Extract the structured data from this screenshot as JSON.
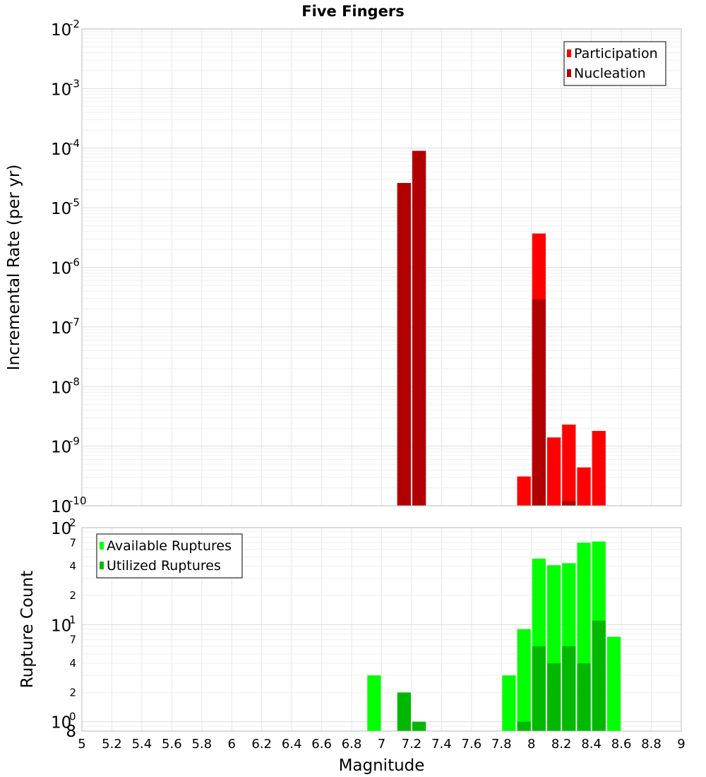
{
  "chart_data": [
    {
      "type": "bar",
      "title": "Five Fingers",
      "xlabel": "",
      "ylabel": "Incremental Rate (per yr)",
      "y_scale": "log",
      "xlim": [
        5,
        9
      ],
      "ylim": [
        1e-10,
        0.01
      ],
      "y_tick_exponents": [
        "-10",
        "-9",
        "-8",
        "-7",
        "-6",
        "-5",
        "-4",
        "-3",
        "-2"
      ],
      "grid": true,
      "legend_position": "top-right",
      "bar_width": 0.1,
      "series": [
        {
          "name": "Participation",
          "color": "#ff0000",
          "x": [
            7.15,
            7.25,
            7.95,
            8.05,
            8.15,
            8.25,
            8.35,
            8.45
          ],
          "values": [
            2.6e-05,
            9e-05,
            3.1e-10,
            3.7e-06,
            1.4e-09,
            2.3e-09,
            4.4e-10,
            1.8e-09
          ]
        },
        {
          "name": "Nucleation",
          "color": "#b00000",
          "x": [
            7.15,
            7.25,
            8.05,
            8.25
          ],
          "values": [
            2.6e-05,
            9e-05,
            2.9e-07,
            1.2e-10
          ]
        }
      ]
    },
    {
      "type": "bar",
      "xlabel": "Magnitude",
      "ylabel": "Rupture Count",
      "y_scale": "log",
      "xlim": [
        5,
        9
      ],
      "ylim": [
        0.8,
        100
      ],
      "x_ticks": [
        "5",
        "5.2",
        "5.4",
        "5.6",
        "5.8",
        "6",
        "6.2",
        "6.4",
        "6.6",
        "6.8",
        "7",
        "7.2",
        "7.4",
        "7.6",
        "7.8",
        "8",
        "8.2",
        "8.4",
        "8.6",
        "8.8",
        "9"
      ],
      "y_major_ticks": [
        {
          "value": 1,
          "base": "10",
          "exp": "0"
        },
        {
          "value": 10,
          "base": "10",
          "exp": "1"
        },
        {
          "value": 100,
          "base": "10",
          "exp": "2"
        }
      ],
      "y_minor_ticks": [
        {
          "value": 0.8,
          "label": "8"
        },
        {
          "value": 2,
          "label": "2"
        },
        {
          "value": 4,
          "label": "4"
        },
        {
          "value": 7,
          "label": "7"
        },
        {
          "value": 20,
          "label": "2"
        },
        {
          "value": 40,
          "label": "4"
        },
        {
          "value": 70,
          "label": "7"
        }
      ],
      "grid": true,
      "legend_position": "top-left",
      "bar_width": 0.1,
      "series": [
        {
          "name": "Available Ruptures",
          "color": "#00ff00",
          "x": [
            6.95,
            7.85,
            7.95,
            8.05,
            8.15,
            8.25,
            8.35,
            8.45,
            8.55
          ],
          "values": [
            3,
            3,
            9,
            48,
            41,
            43,
            70,
            72,
            7.5
          ]
        },
        {
          "name": "Utilized Ruptures",
          "color": "#00b800",
          "x": [
            7.15,
            7.25,
            7.95,
            8.05,
            8.15,
            8.25,
            8.35,
            8.45
          ],
          "values": [
            2,
            1,
            1,
            6,
            4,
            6,
            4,
            11
          ]
        }
      ]
    }
  ]
}
